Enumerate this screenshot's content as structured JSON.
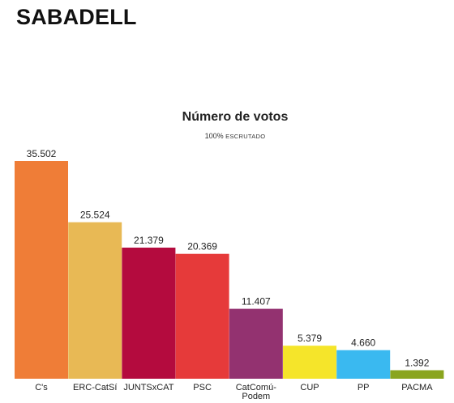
{
  "header": {
    "title": "SABADELL"
  },
  "chart_data": {
    "type": "bar",
    "title": "Número de votos",
    "subtitle_prefix": "100%",
    "subtitle_text": "escrutado",
    "categories": [
      "C's",
      "ERC-CatSí",
      "JUNTSxCAT",
      "PSC",
      "CatComú-Podem",
      "CUP",
      "PP",
      "PACMA"
    ],
    "category_lines": [
      [
        "C's"
      ],
      [
        "ERC-CatSí"
      ],
      [
        "JUNTSxCAT"
      ],
      [
        "PSC"
      ],
      [
        "CatComú-",
        "Podem"
      ],
      [
        "CUP"
      ],
      [
        "PP"
      ],
      [
        "PACMA"
      ]
    ],
    "values": [
      35502,
      25524,
      21379,
      20369,
      11407,
      5379,
      4660,
      1392
    ],
    "value_labels": [
      "35.502",
      "25.524",
      "21.379",
      "20.369",
      "11.407",
      "5.379",
      "4.660",
      "1.392"
    ],
    "colors": [
      "#ef7d37",
      "#e8b955",
      "#b40b3e",
      "#e63a3a",
      "#933270",
      "#f5e52a",
      "#3ab9f0",
      "#8aa51e"
    ],
    "ylim": [
      0,
      35502
    ]
  }
}
